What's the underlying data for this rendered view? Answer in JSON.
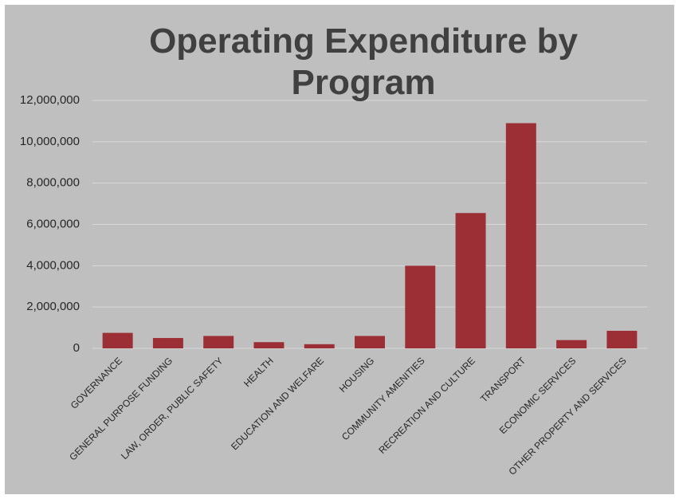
{
  "chart_data": {
    "type": "bar",
    "title": "Operating Expenditure by Program",
    "categories": [
      "GOVERNANCE",
      "GENERAL PURPOSE FUNDING",
      "LAW, ORDER, PUBLIC SAFETY",
      "HEALTH",
      "EDUCATION AND WELFARE",
      "HOUSING",
      "COMMUNITY AMENITIES",
      "RECREATION AND CULTURE",
      "TRANSPORT",
      "ECONOMIC SERVICES",
      "OTHER PROPERTY AND SERVICES"
    ],
    "values": [
      750000,
      500000,
      600000,
      300000,
      200000,
      600000,
      4000000,
      6550000,
      10900000,
      400000,
      850000
    ],
    "color": "#9c2f35",
    "ylim": [
      0,
      12000000
    ],
    "yticks": [
      0,
      {
        "value": 2000000,
        "label": "2,000,000"
      },
      {
        "value": 4000000,
        "label": "4,000,000"
      },
      {
        "value": 6000000,
        "label": "6,000,000"
      },
      {
        "value": 8000000,
        "label": "8,000,000"
      },
      {
        "value": 10000000,
        "label": "10,000,000"
      },
      {
        "value": 12000000,
        "label": "12,000,000"
      }
    ],
    "grid": true
  }
}
